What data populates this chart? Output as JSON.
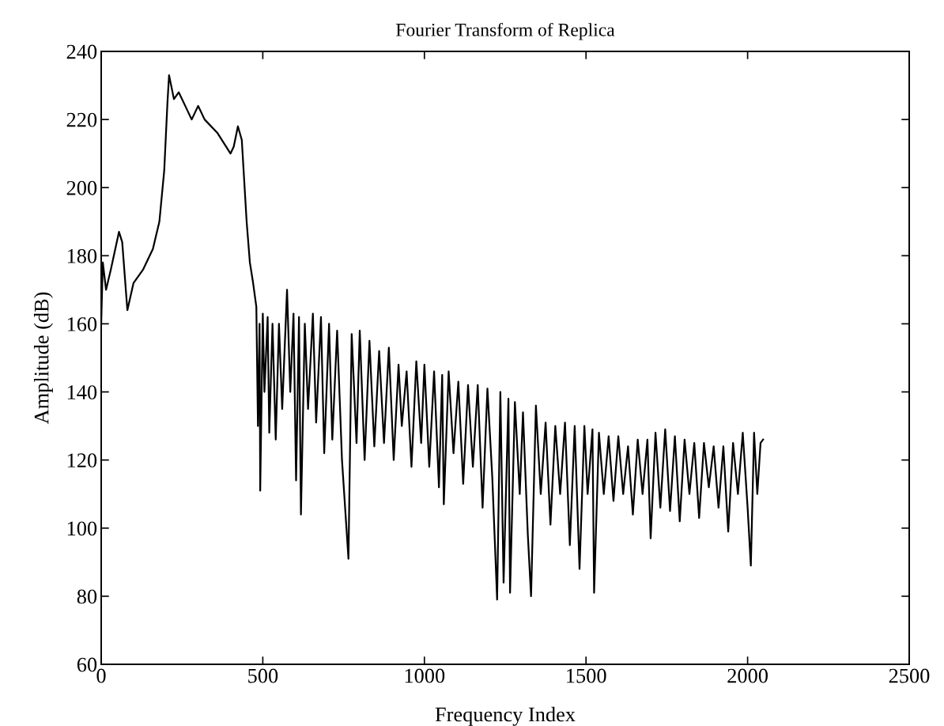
{
  "chart_data": {
    "type": "line",
    "title": "Fourier Transform of Replica",
    "xlabel": "Frequency Index",
    "ylabel": "Amplitude (dB)",
    "xlim": [
      0,
      2500
    ],
    "ylim": [
      60,
      240
    ],
    "xticks": [
      0,
      500,
      1000,
      1500,
      2000,
      2500
    ],
    "yticks": [
      60,
      80,
      100,
      120,
      140,
      160,
      180,
      200,
      220,
      240
    ],
    "grid": false,
    "series": [
      {
        "color": "#000000",
        "x": [
          0,
          5,
          15,
          30,
          55,
          65,
          81,
          100,
          130,
          160,
          180,
          195,
          205,
          210,
          225,
          240,
          260,
          280,
          300,
          320,
          360,
          400,
          410,
          423,
          435,
          450,
          460,
          470,
          480,
          485,
          490,
          492,
          500,
          505,
          515,
          520,
          530,
          540,
          550,
          560,
          575,
          585,
          595,
          603,
          612,
          618,
          630,
          640,
          655,
          665,
          680,
          690,
          705,
          715,
          730,
          745,
          765,
          775,
          790,
          800,
          815,
          830,
          845,
          860,
          875,
          890,
          905,
          920,
          930,
          945,
          960,
          975,
          990,
          1000,
          1015,
          1030,
          1045,
          1055,
          1060,
          1075,
          1090,
          1105,
          1120,
          1135,
          1150,
          1165,
          1180,
          1195,
          1210,
          1225,
          1235,
          1245,
          1260,
          1265,
          1280,
          1295,
          1305,
          1320,
          1330,
          1345,
          1360,
          1375,
          1390,
          1405,
          1420,
          1435,
          1450,
          1465,
          1480,
          1495,
          1505,
          1520,
          1525,
          1540,
          1555,
          1570,
          1585,
          1600,
          1615,
          1630,
          1645,
          1660,
          1675,
          1690,
          1700,
          1715,
          1730,
          1745,
          1760,
          1775,
          1790,
          1805,
          1820,
          1835,
          1850,
          1865,
          1880,
          1895,
          1910,
          1925,
          1940,
          1955,
          1970,
          1985,
          2000,
          2010,
          2020,
          2030,
          2040,
          2048
        ],
        "values": [
          160,
          178,
          170,
          176,
          187,
          184,
          164,
          172,
          176,
          182,
          190,
          205,
          225,
          233,
          226,
          228,
          224,
          220,
          224,
          220,
          216,
          210,
          212,
          218,
          214,
          190,
          178,
          172,
          165,
          130,
          160,
          111,
          163,
          140,
          162,
          128,
          160,
          126,
          160,
          135,
          170,
          140,
          163,
          114,
          162,
          104,
          160,
          135,
          163,
          131,
          162,
          122,
          160,
          126,
          158,
          120,
          91,
          157,
          125,
          158,
          120,
          155,
          124,
          152,
          125,
          153,
          120,
          148,
          130,
          146,
          118,
          149,
          125,
          148,
          118,
          146,
          112,
          145,
          107,
          146,
          122,
          143,
          113,
          142,
          118,
          142,
          106,
          141,
          115,
          79,
          140,
          84,
          138,
          81,
          137,
          110,
          134,
          98,
          80,
          136,
          110,
          131,
          101,
          130,
          110,
          131,
          95,
          130,
          88,
          130,
          110,
          129,
          81,
          128,
          110,
          127,
          108,
          127,
          110,
          124,
          104,
          126,
          110,
          126,
          97,
          128,
          106,
          129,
          105,
          127,
          102,
          126,
          110,
          125,
          103,
          125,
          112,
          124,
          106,
          124,
          99,
          125,
          110,
          128,
          106,
          89,
          128,
          110,
          125,
          126
        ]
      }
    ]
  }
}
